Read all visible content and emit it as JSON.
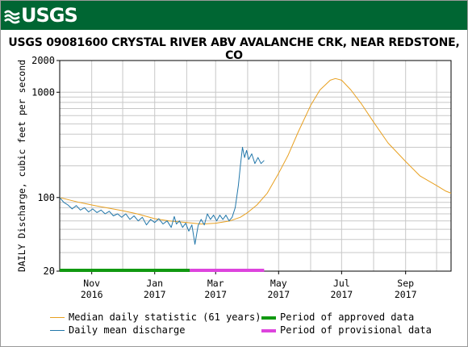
{
  "header": {
    "brand": "USGS"
  },
  "chart_data": {
    "type": "line",
    "title": "USGS 09081600 CRYSTAL RIVER ABV AVALANCHE CRK, NEAR REDSTONE, CO",
    "ylabel": "DAILY Discharge, cubic feet per second",
    "xlabel": "",
    "yscale": "log",
    "ylim": [
      20,
      2000
    ],
    "xlim": [
      "2016-10-01",
      "2017-10-15"
    ],
    "yticks": [
      {
        "value": 20,
        "label": "20"
      },
      {
        "value": 100,
        "label": "100"
      },
      {
        "value": 1000,
        "label": "1000"
      },
      {
        "value": 2000,
        "label": "2000"
      }
    ],
    "xticks": [
      {
        "date": "2016-11-01",
        "label": "Nov",
        "year": "2016"
      },
      {
        "date": "2017-01-01",
        "label": "Jan",
        "year": "2017"
      },
      {
        "date": "2017-03-01",
        "label": "Mar",
        "year": "2017"
      },
      {
        "date": "2017-05-01",
        "label": "May",
        "year": "2017"
      },
      {
        "date": "2017-07-01",
        "label": "Jul",
        "year": "2017"
      },
      {
        "date": "2017-09-01",
        "label": "Sep",
        "year": "2017"
      }
    ],
    "grid": true,
    "series": [
      {
        "name": "Median daily statistic (61 years)",
        "color": "#e8a020",
        "points": [
          [
            "2016-10-01",
            100
          ],
          [
            "2016-10-10",
            95
          ],
          [
            "2016-10-20",
            90
          ],
          [
            "2016-11-01",
            85
          ],
          [
            "2016-11-15",
            80
          ],
          [
            "2016-12-01",
            75
          ],
          [
            "2016-12-15",
            70
          ],
          [
            "2017-01-01",
            63
          ],
          [
            "2017-01-15",
            60
          ],
          [
            "2017-02-01",
            58
          ],
          [
            "2017-02-15",
            56
          ],
          [
            "2017-03-01",
            57
          ],
          [
            "2017-03-15",
            60
          ],
          [
            "2017-03-25",
            65
          ],
          [
            "2017-04-01",
            72
          ],
          [
            "2017-04-10",
            85
          ],
          [
            "2017-04-20",
            110
          ],
          [
            "2017-05-01",
            170
          ],
          [
            "2017-05-10",
            250
          ],
          [
            "2017-05-20",
            420
          ],
          [
            "2017-06-01",
            750
          ],
          [
            "2017-06-10",
            1050
          ],
          [
            "2017-06-20",
            1300
          ],
          [
            "2017-06-25",
            1350
          ],
          [
            "2017-07-01",
            1300
          ],
          [
            "2017-07-10",
            1050
          ],
          [
            "2017-07-20",
            780
          ],
          [
            "2017-08-01",
            520
          ],
          [
            "2017-08-15",
            330
          ],
          [
            "2017-09-01",
            220
          ],
          [
            "2017-09-15",
            160
          ],
          [
            "2017-10-01",
            130
          ],
          [
            "2017-10-10",
            115
          ],
          [
            "2017-10-15",
            110
          ]
        ]
      },
      {
        "name": "Daily mean discharge",
        "color": "#2277aa",
        "points": [
          [
            "2016-10-01",
            100
          ],
          [
            "2016-10-05",
            90
          ],
          [
            "2016-10-09",
            85
          ],
          [
            "2016-10-13",
            78
          ],
          [
            "2016-10-17",
            84
          ],
          [
            "2016-10-21",
            76
          ],
          [
            "2016-10-25",
            80
          ],
          [
            "2016-10-29",
            73
          ],
          [
            "2016-11-02",
            78
          ],
          [
            "2016-11-06",
            72
          ],
          [
            "2016-11-10",
            76
          ],
          [
            "2016-11-14",
            70
          ],
          [
            "2016-11-18",
            74
          ],
          [
            "2016-11-22",
            67
          ],
          [
            "2016-11-26",
            70
          ],
          [
            "2016-11-30",
            65
          ],
          [
            "2016-12-04",
            70
          ],
          [
            "2016-12-08",
            62
          ],
          [
            "2016-12-12",
            67
          ],
          [
            "2016-12-16",
            60
          ],
          [
            "2016-12-20",
            65
          ],
          [
            "2016-12-24",
            55
          ],
          [
            "2016-12-28",
            62
          ],
          [
            "2017-01-01",
            58
          ],
          [
            "2017-01-05",
            63
          ],
          [
            "2017-01-09",
            56
          ],
          [
            "2017-01-13",
            60
          ],
          [
            "2017-01-17",
            52
          ],
          [
            "2017-01-20",
            66
          ],
          [
            "2017-01-22",
            56
          ],
          [
            "2017-01-25",
            60
          ],
          [
            "2017-01-28",
            52
          ],
          [
            "2017-01-31",
            57
          ],
          [
            "2017-02-03",
            48
          ],
          [
            "2017-02-06",
            55
          ],
          [
            "2017-02-09",
            36
          ],
          [
            "2017-02-12",
            54
          ],
          [
            "2017-02-15",
            62
          ],
          [
            "2017-02-18",
            55
          ],
          [
            "2017-02-21",
            70
          ],
          [
            "2017-02-24",
            62
          ],
          [
            "2017-02-27",
            68
          ],
          [
            "2017-03-02",
            60
          ],
          [
            "2017-03-05",
            68
          ],
          [
            "2017-03-08",
            62
          ],
          [
            "2017-03-11",
            68
          ],
          [
            "2017-03-14",
            60
          ],
          [
            "2017-03-17",
            65
          ],
          [
            "2017-03-20",
            80
          ],
          [
            "2017-03-23",
            130
          ],
          [
            "2017-03-25",
            200
          ],
          [
            "2017-03-27",
            300
          ],
          [
            "2017-03-29",
            240
          ],
          [
            "2017-03-31",
            280
          ],
          [
            "2017-04-02",
            230
          ],
          [
            "2017-04-05",
            260
          ],
          [
            "2017-04-08",
            210
          ],
          [
            "2017-04-11",
            240
          ],
          [
            "2017-04-14",
            210
          ],
          [
            "2017-04-17",
            225
          ]
        ]
      }
    ],
    "legend": {
      "placement": "bottom",
      "items": [
        {
          "label": "Median daily statistic (61 years)",
          "color": "#e8a020",
          "kind": "line"
        },
        {
          "label": "Daily mean discharge",
          "color": "#2277aa",
          "kind": "line"
        },
        {
          "label": "Period of approved data",
          "color": "#119911",
          "kind": "bar"
        },
        {
          "label": "Period of provisional data",
          "color": "#dd44dd",
          "kind": "bar"
        }
      ]
    },
    "periods": [
      {
        "name": "Period of approved data",
        "start": "2016-10-01",
        "end": "2017-02-04",
        "color": "#119911"
      },
      {
        "name": "Period of provisional data",
        "start": "2017-02-04",
        "end": "2017-04-17",
        "color": "#dd44dd"
      }
    ]
  }
}
